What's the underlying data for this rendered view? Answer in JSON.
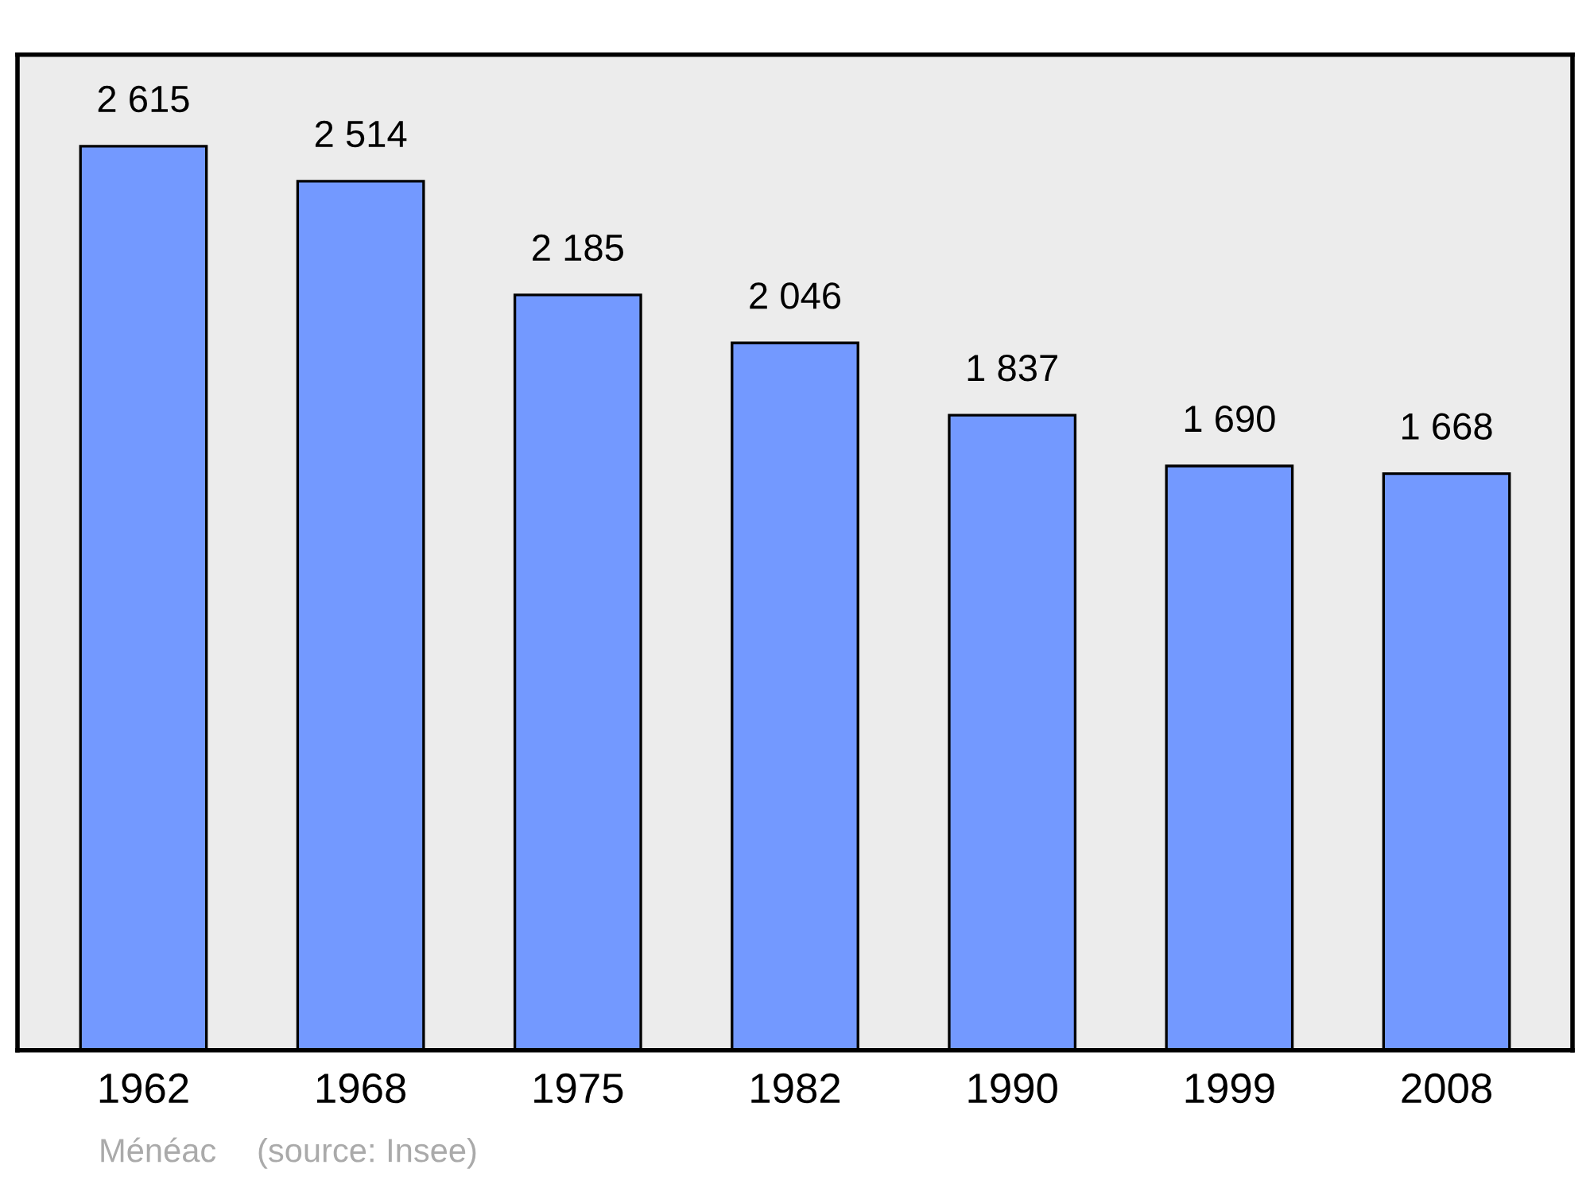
{
  "chart_data": {
    "type": "bar",
    "categories": [
      "1962",
      "1968",
      "1975",
      "1982",
      "1990",
      "1999",
      "2008"
    ],
    "values": [
      2615,
      2514,
      2185,
      2046,
      1837,
      1690,
      1668
    ],
    "value_labels": [
      "2 615",
      "2 514",
      "2 185",
      "2 046",
      "1 837",
      "1 690",
      "1 668"
    ],
    "color": "#7399ff",
    "ylim": [
      0,
      2880
    ],
    "tick_labels": "x",
    "grid": false,
    "annotations": [
      "Ménéac",
      "(source: Insee)"
    ]
  }
}
